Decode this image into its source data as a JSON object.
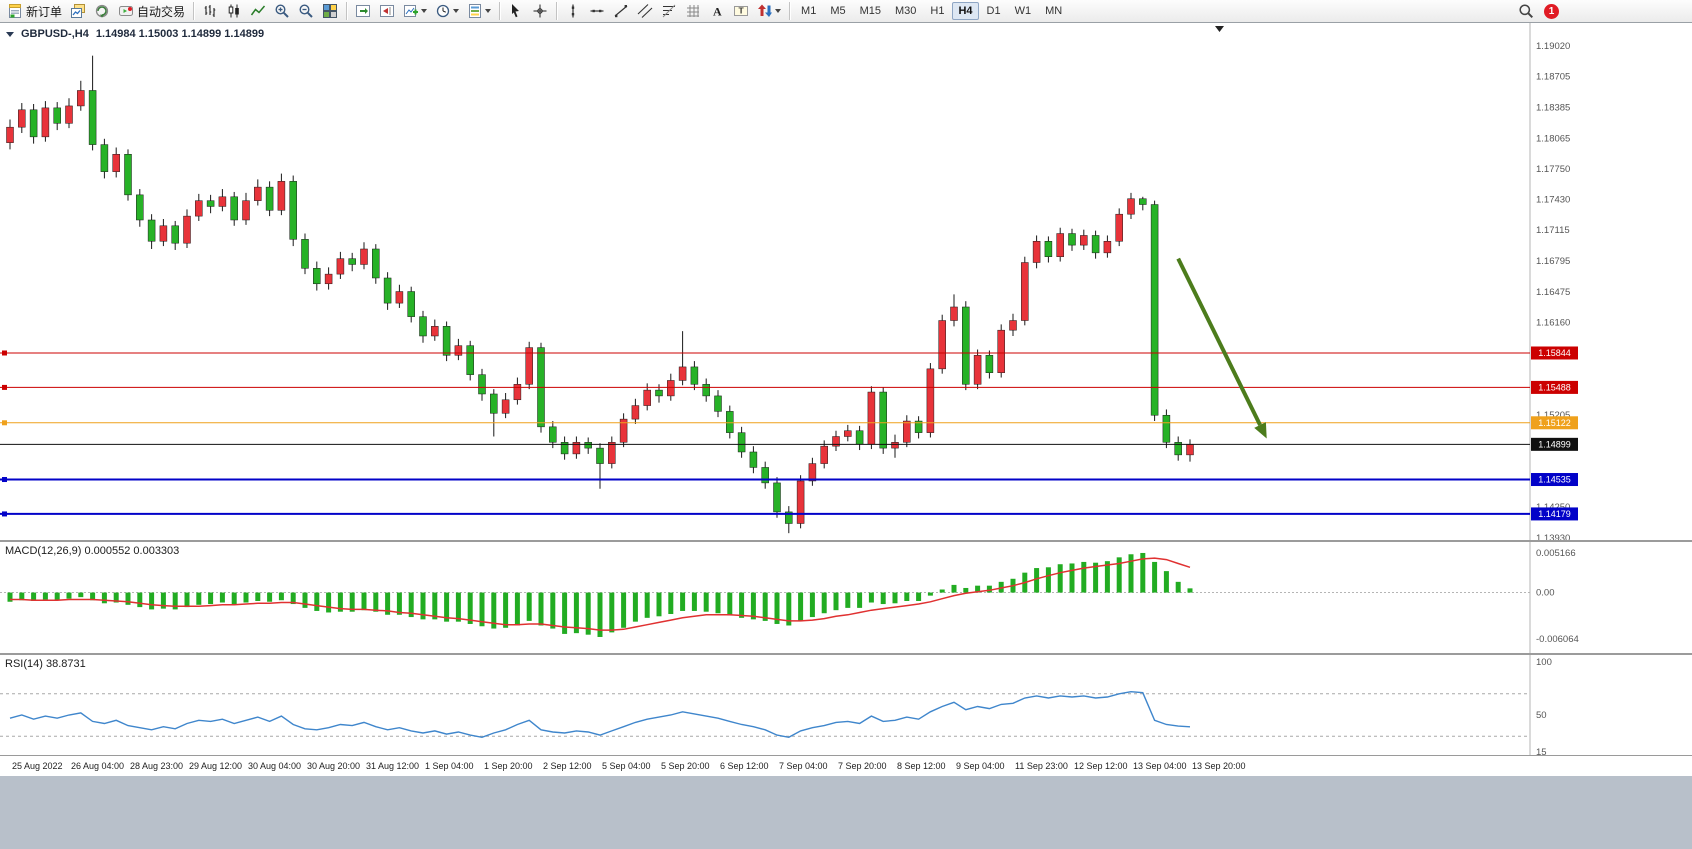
{
  "toolbar": {
    "buttons": [
      {
        "name": "new-order",
        "icon": "new-order",
        "label": "新订单"
      },
      {
        "name": "chart-windows",
        "icon": "cascade"
      },
      {
        "name": "community",
        "icon": "globe"
      },
      {
        "name": "auto-trading",
        "icon": "autotrade",
        "label": "自动交易"
      },
      {
        "sep": true
      },
      {
        "name": "bar-chart-mode",
        "icon": "bars"
      },
      {
        "name": "candle-chart-mode",
        "icon": "candles"
      },
      {
        "name": "line-chart-mode",
        "icon": "linechart"
      },
      {
        "name": "zoom-in",
        "icon": "zoomin"
      },
      {
        "name": "zoom-out",
        "icon": "zoomout"
      },
      {
        "name": "tile-windows",
        "icon": "tiles"
      },
      {
        "sep": true
      },
      {
        "name": "auto-scroll",
        "icon": "autoscroll"
      },
      {
        "name": "chart-shift",
        "icon": "chartshift"
      },
      {
        "name": "new-chart",
        "icon": "newchart",
        "dropdown": true
      },
      {
        "name": "periods",
        "icon": "clock",
        "dropdown": true
      },
      {
        "name": "templates",
        "icon": "template",
        "dropdown": true
      },
      {
        "sep": true
      },
      {
        "name": "cursor",
        "icon": "cursor"
      },
      {
        "name": "crosshair",
        "icon": "crosshair"
      },
      {
        "sep": true
      },
      {
        "name": "vertical-line",
        "icon": "vline"
      },
      {
        "name": "horizontal-line",
        "icon": "hline"
      },
      {
        "name": "trendline",
        "icon": "trendline"
      },
      {
        "name": "equidistant-channel",
        "icon": "channel"
      },
      {
        "name": "fibonacci",
        "icon": "fibo"
      },
      {
        "name": "cycle-lines",
        "icon": "grid"
      },
      {
        "name": "text",
        "icon": "textA"
      },
      {
        "name": "text-label",
        "icon": "labelT"
      },
      {
        "name": "arrow-objects",
        "icon": "arrowobj",
        "dropdown": true
      },
      {
        "sep": true
      }
    ],
    "timeframes": [
      "M1",
      "M5",
      "M15",
      "M30",
      "H1",
      "H4",
      "D1",
      "W1",
      "MN"
    ],
    "active_timeframe": "H4",
    "notification_count": "1"
  },
  "chart_header": {
    "symbol": "GBPUSD-,H4",
    "quotes": "1.14984 1.15003 1.14899 1.14899"
  },
  "chart_data": [
    {
      "type": "candlestick",
      "symbol": "GBPUSD-",
      "timeframe": "H4",
      "up_color": "#e8333a",
      "down_color": "#27b227",
      "y_axis": {
        "ticks": [
          "1.19020",
          "1.18705",
          "1.18385",
          "1.18065",
          "1.17750",
          "1.17430",
          "1.17115",
          "1.16795",
          "1.16475",
          "1.16160",
          "1.15205",
          "1.14250",
          "1.13930"
        ]
      },
      "price_lines": [
        {
          "price": 1.15844,
          "label": "1.15844",
          "color": "#cc0000",
          "width": 1,
          "kind": "resistance"
        },
        {
          "price": 1.15488,
          "label": "1.15488",
          "color": "#cc0000",
          "width": 1,
          "kind": "resistance"
        },
        {
          "price": 1.15122,
          "label": "1.15122",
          "color": "#efa11c",
          "width": 1,
          "kind": "level"
        },
        {
          "price": 1.14899,
          "label": "1.14899",
          "color": "#101010",
          "width": 1,
          "kind": "current",
          "current": true
        },
        {
          "price": 1.14535,
          "label": "1.14535",
          "color": "#0202c8",
          "width": 2,
          "kind": "support"
        },
        {
          "price": 1.14179,
          "label": "1.14179",
          "color": "#0202c8",
          "width": 2,
          "kind": "support"
        }
      ],
      "annotation_arrow": {
        "x1_index": 99,
        "price1": 1.1682,
        "x2_index": 106.5,
        "price2": 1.1496,
        "color": "#4c7c1c"
      },
      "x_labels": {
        "step": 5,
        "labels": [
          "25 Aug 2022",
          "26 Aug 04:00",
          "28 Aug 23:00",
          "29 Aug 12:00",
          "30 Aug 04:00",
          "30 Aug 20:00",
          "31 Aug 12:00",
          "1 Sep 04:00",
          "1 Sep 20:00",
          "2 Sep 12:00",
          "5 Sep 04:00",
          "5 Sep 20:00",
          "6 Sep 12:00",
          "7 Sep 04:00",
          "7 Sep 20:00",
          "8 Sep 12:00",
          "9 Sep 04:00",
          "11 Sep 23:00",
          "12 Sep 12:00",
          "13 Sep 04:00",
          "13 Sep 20:00"
        ]
      },
      "candles": [
        [
          1.1802,
          1.1826,
          1.1795,
          1.1818
        ],
        [
          1.1818,
          1.1843,
          1.1812,
          1.1836
        ],
        [
          1.1836,
          1.1842,
          1.1801,
          1.1808
        ],
        [
          1.1808,
          1.1845,
          1.1803,
          1.1838
        ],
        [
          1.1838,
          1.1844,
          1.1815,
          1.1822
        ],
        [
          1.1822,
          1.1848,
          1.1817,
          1.184
        ],
        [
          1.184,
          1.1866,
          1.1835,
          1.1856
        ],
        [
          1.1856,
          1.1892,
          1.1794,
          1.18
        ],
        [
          1.18,
          1.1806,
          1.1765,
          1.1772
        ],
        [
          1.1772,
          1.1797,
          1.1766,
          1.179
        ],
        [
          1.179,
          1.1795,
          1.1742,
          1.1748
        ],
        [
          1.1748,
          1.1754,
          1.1715,
          1.1722
        ],
        [
          1.1722,
          1.1728,
          1.1692,
          1.17
        ],
        [
          1.17,
          1.1723,
          1.1695,
          1.1716
        ],
        [
          1.1716,
          1.1721,
          1.1691,
          1.1698
        ],
        [
          1.1698,
          1.1733,
          1.1693,
          1.1726
        ],
        [
          1.1726,
          1.1749,
          1.1721,
          1.1742
        ],
        [
          1.1742,
          1.1748,
          1.1729,
          1.1736
        ],
        [
          1.1736,
          1.1754,
          1.1731,
          1.1746
        ],
        [
          1.1746,
          1.1751,
          1.1716,
          1.1722
        ],
        [
          1.1722,
          1.175,
          1.1717,
          1.1742
        ],
        [
          1.1742,
          1.1764,
          1.1737,
          1.1756
        ],
        [
          1.1756,
          1.1762,
          1.1726,
          1.1732
        ],
        [
          1.1732,
          1.177,
          1.1727,
          1.1762
        ],
        [
          1.1762,
          1.1768,
          1.1695,
          1.1702
        ],
        [
          1.1702,
          1.1708,
          1.1666,
          1.1672
        ],
        [
          1.1672,
          1.1679,
          1.1649,
          1.1656
        ],
        [
          1.1656,
          1.1673,
          1.165,
          1.1666
        ],
        [
          1.1666,
          1.1689,
          1.1661,
          1.1682
        ],
        [
          1.1682,
          1.1688,
          1.1669,
          1.1676
        ],
        [
          1.1676,
          1.1699,
          1.1671,
          1.1692
        ],
        [
          1.1692,
          1.1697,
          1.1656,
          1.1662
        ],
        [
          1.1662,
          1.1668,
          1.1629,
          1.1636
        ],
        [
          1.1636,
          1.1655,
          1.1631,
          1.1648
        ],
        [
          1.1648,
          1.1653,
          1.1616,
          1.1622
        ],
        [
          1.1622,
          1.1628,
          1.1595,
          1.1602
        ],
        [
          1.1602,
          1.1619,
          1.1597,
          1.1612
        ],
        [
          1.1612,
          1.1617,
          1.1576,
          1.1582
        ],
        [
          1.1582,
          1.1599,
          1.1577,
          1.1592
        ],
        [
          1.1592,
          1.1597,
          1.1556,
          1.1562
        ],
        [
          1.1562,
          1.1568,
          1.1535,
          1.1542
        ],
        [
          1.1542,
          1.1547,
          1.1498,
          1.1522
        ],
        [
          1.1522,
          1.1543,
          1.1517,
          1.1536
        ],
        [
          1.1536,
          1.1559,
          1.1531,
          1.1552
        ],
        [
          1.1552,
          1.1596,
          1.1547,
          1.159
        ],
        [
          1.159,
          1.1595,
          1.1502,
          1.1508
        ],
        [
          1.1508,
          1.1514,
          1.1486,
          1.1492
        ],
        [
          1.1492,
          1.1498,
          1.1474,
          1.148
        ],
        [
          1.148,
          1.1498,
          1.1475,
          1.1492
        ],
        [
          1.1492,
          1.1497,
          1.148,
          1.1486
        ],
        [
          1.1486,
          1.1491,
          1.1444,
          1.147
        ],
        [
          1.147,
          1.1498,
          1.1465,
          1.1492
        ],
        [
          1.1492,
          1.1522,
          1.1487,
          1.1516
        ],
        [
          1.1516,
          1.1537,
          1.1511,
          1.153
        ],
        [
          1.153,
          1.1553,
          1.1525,
          1.1546
        ],
        [
          1.1546,
          1.1552,
          1.1533,
          1.154
        ],
        [
          1.154,
          1.1563,
          1.1535,
          1.1556
        ],
        [
          1.1556,
          1.1607,
          1.1551,
          1.157
        ],
        [
          1.157,
          1.1576,
          1.1546,
          1.1552
        ],
        [
          1.1552,
          1.1558,
          1.1534,
          1.154
        ],
        [
          1.154,
          1.1546,
          1.1518,
          1.1524
        ],
        [
          1.1524,
          1.153,
          1.1496,
          1.1502
        ],
        [
          1.1502,
          1.1508,
          1.1476,
          1.1482
        ],
        [
          1.1482,
          1.1488,
          1.146,
          1.1466
        ],
        [
          1.1466,
          1.1472,
          1.1444,
          1.145
        ],
        [
          1.145,
          1.1456,
          1.1414,
          1.142
        ],
        [
          1.142,
          1.1426,
          1.1398,
          1.1408
        ],
        [
          1.1408,
          1.1458,
          1.1403,
          1.1452
        ],
        [
          1.1452,
          1.1476,
          1.1447,
          1.147
        ],
        [
          1.147,
          1.1494,
          1.1465,
          1.1488
        ],
        [
          1.1488,
          1.1504,
          1.1483,
          1.1498
        ],
        [
          1.1498,
          1.151,
          1.1493,
          1.1504
        ],
        [
          1.1504,
          1.1509,
          1.1484,
          1.149
        ],
        [
          1.149,
          1.155,
          1.1485,
          1.1544
        ],
        [
          1.1544,
          1.1549,
          1.148,
          1.1486
        ],
        [
          1.1486,
          1.15,
          1.1476,
          1.1492
        ],
        [
          1.1492,
          1.152,
          1.1487,
          1.1514
        ],
        [
          1.1514,
          1.1519,
          1.1496,
          1.1502
        ],
        [
          1.1502,
          1.1574,
          1.1497,
          1.1568
        ],
        [
          1.1568,
          1.1624,
          1.1563,
          1.1618
        ],
        [
          1.1618,
          1.1645,
          1.1612,
          1.1632
        ],
        [
          1.1632,
          1.1638,
          1.1546,
          1.1552
        ],
        [
          1.1552,
          1.1588,
          1.1547,
          1.1582
        ],
        [
          1.1582,
          1.1587,
          1.1558,
          1.1564
        ],
        [
          1.1564,
          1.1614,
          1.1559,
          1.1608
        ],
        [
          1.1608,
          1.1625,
          1.1602,
          1.1618
        ],
        [
          1.1618,
          1.1684,
          1.1613,
          1.1678
        ],
        [
          1.1678,
          1.1706,
          1.1672,
          1.17
        ],
        [
          1.17,
          1.1705,
          1.1678,
          1.1684
        ],
        [
          1.1684,
          1.1714,
          1.1679,
          1.1708
        ],
        [
          1.1708,
          1.1713,
          1.169,
          1.1696
        ],
        [
          1.1696,
          1.1712,
          1.1691,
          1.1706
        ],
        [
          1.1706,
          1.1711,
          1.1682,
          1.1688
        ],
        [
          1.1688,
          1.1706,
          1.1683,
          1.17
        ],
        [
          1.17,
          1.1734,
          1.1695,
          1.1728
        ],
        [
          1.1728,
          1.175,
          1.1723,
          1.1744
        ],
        [
          1.1744,
          1.1746,
          1.1732,
          1.1738
        ],
        [
          1.1738,
          1.1742,
          1.1514,
          1.152
        ],
        [
          1.152,
          1.1526,
          1.1486,
          1.1492
        ],
        [
          1.1492,
          1.1498,
          1.1473,
          1.1479
        ],
        [
          1.1479,
          1.1495,
          1.1472,
          1.14899
        ]
      ]
    },
    {
      "type": "bar+line",
      "name": "MACD",
      "title": "MACD(12,26,9) 0.000552 0.003303",
      "params": "12,26,9",
      "current_values": {
        "macd": 0.000552,
        "signal": 0.003303
      },
      "histogram_color": "#22ac22",
      "signal_color": "#e03131",
      "y_ticks": [
        "0.005166",
        "0.00",
        "-0.006064"
      ],
      "histogram": [
        -0.0012,
        -0.001,
        -0.0011,
        -0.0009,
        -0.001,
        -0.0008,
        -0.0006,
        -0.001,
        -0.0014,
        -0.0013,
        -0.0016,
        -0.0019,
        -0.0022,
        -0.0021,
        -0.0022,
        -0.0019,
        -0.0016,
        -0.0015,
        -0.0013,
        -0.0015,
        -0.0013,
        -0.0011,
        -0.0012,
        -0.001,
        -0.0015,
        -0.002,
        -0.0024,
        -0.0026,
        -0.0025,
        -0.0025,
        -0.0023,
        -0.0025,
        -0.0029,
        -0.0029,
        -0.0032,
        -0.0035,
        -0.0035,
        -0.0038,
        -0.0038,
        -0.0041,
        -0.0044,
        -0.0047,
        -0.0046,
        -0.0043,
        -0.0037,
        -0.0043,
        -0.0047,
        -0.0054,
        -0.0053,
        -0.0055,
        -0.0058,
        -0.0052,
        -0.0046,
        -0.0038,
        -0.0033,
        -0.0031,
        -0.0028,
        -0.0024,
        -0.0024,
        -0.0025,
        -0.0027,
        -0.003,
        -0.0033,
        -0.0035,
        -0.0037,
        -0.0041,
        -0.0043,
        -0.0037,
        -0.0032,
        -0.0027,
        -0.0023,
        -0.002,
        -0.002,
        -0.0013,
        -0.0015,
        -0.0014,
        -0.0011,
        -0.0011,
        -0.0004,
        0.0004,
        0.001,
        0.0006,
        0.0009,
        0.0009,
        0.0014,
        0.0018,
        0.0026,
        0.0032,
        0.0033,
        0.0037,
        0.0038,
        0.004,
        0.0039,
        0.0041,
        0.0046,
        0.005,
        0.00517,
        0.004,
        0.0028,
        0.0014,
        0.00055
      ],
      "signal_line": [
        -0.0009,
        -0.0009,
        -0.001,
        -0.001,
        -0.001,
        -0.0009,
        -0.0009,
        -0.0009,
        -0.001,
        -0.0011,
        -0.0012,
        -0.0014,
        -0.0016,
        -0.0017,
        -0.0018,
        -0.0018,
        -0.0018,
        -0.0017,
        -0.0016,
        -0.0016,
        -0.0015,
        -0.0014,
        -0.0014,
        -0.0013,
        -0.0013,
        -0.0015,
        -0.0017,
        -0.0019,
        -0.0021,
        -0.0022,
        -0.0022,
        -0.0023,
        -0.0024,
        -0.0026,
        -0.0027,
        -0.0029,
        -0.0031,
        -0.0033,
        -0.0034,
        -0.0036,
        -0.0038,
        -0.004,
        -0.0042,
        -0.0042,
        -0.0041,
        -0.0041,
        -0.0043,
        -0.0045,
        -0.0046,
        -0.0047,
        -0.0049,
        -0.0049,
        -0.0048,
        -0.0045,
        -0.0042,
        -0.0039,
        -0.0036,
        -0.0033,
        -0.0031,
        -0.0029,
        -0.0029,
        -0.0029,
        -0.003,
        -0.0031,
        -0.0033,
        -0.0035,
        -0.0037,
        -0.0037,
        -0.0036,
        -0.0034,
        -0.0031,
        -0.0029,
        -0.0026,
        -0.0023,
        -0.0021,
        -0.0019,
        -0.0017,
        -0.0015,
        -0.0012,
        -0.0008,
        -0.0004,
        -0.0001,
        0.0001,
        0.0003,
        0.0006,
        0.0009,
        0.0013,
        0.0018,
        0.0022,
        0.0026,
        0.0029,
        0.0032,
        0.0034,
        0.0036,
        0.0038,
        0.0041,
        0.0044,
        0.0045,
        0.0043,
        0.0038,
        0.0033
      ]
    },
    {
      "type": "line",
      "name": "RSI",
      "title": "RSI(14) 38.8731",
      "current_value": 38.8731,
      "line_color": "#3f86cc",
      "y_ticks": [
        "100",
        "50",
        "15"
      ],
      "levels": [
        70,
        30
      ],
      "series": [
        47,
        50,
        46,
        49,
        47,
        50,
        52,
        44,
        42,
        45,
        40,
        38,
        36,
        39,
        37,
        42,
        45,
        44,
        46,
        42,
        45,
        48,
        44,
        49,
        41,
        37,
        36,
        38,
        41,
        40,
        43,
        39,
        36,
        38,
        35,
        33,
        35,
        32,
        34,
        31,
        29,
        33,
        36,
        41,
        45,
        36,
        34,
        33,
        35,
        34,
        31,
        35,
        39,
        43,
        46,
        48,
        50,
        53,
        51,
        49,
        47,
        44,
        41,
        39,
        36,
        31,
        29,
        35,
        38,
        40,
        43,
        44,
        42,
        49,
        44,
        45,
        48,
        46,
        53,
        58,
        62,
        55,
        58,
        56,
        60,
        61,
        66,
        68,
        66,
        68,
        67,
        68,
        66,
        67,
        70,
        72,
        71,
        45,
        41,
        39.5,
        38.87
      ]
    }
  ]
}
